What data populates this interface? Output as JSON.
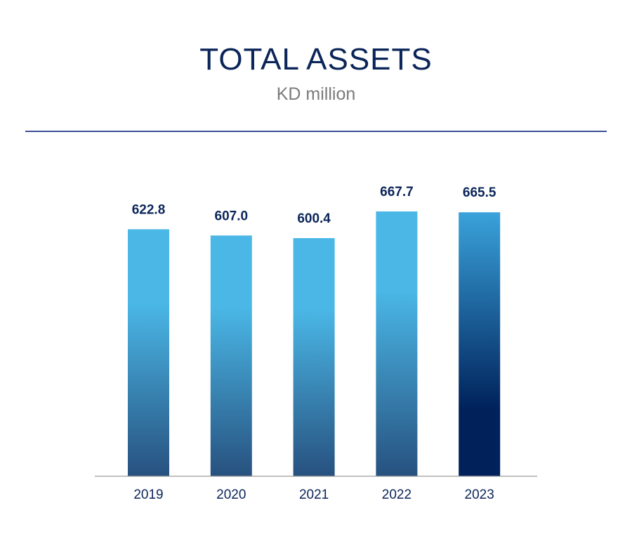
{
  "chart_data": {
    "type": "bar",
    "title": "TOTAL ASSETS",
    "subtitle": "KD million",
    "categories": [
      "2019",
      "2020",
      "2021",
      "2022",
      "2023"
    ],
    "values": [
      622.8,
      607.0,
      600.4,
      667.7,
      665.5
    ],
    "value_labels": [
      "622.8",
      "607.0",
      "600.4",
      "667.7",
      "665.5"
    ],
    "highlight_index": 4,
    "grid": false,
    "colors": {
      "bar_top": "#4ab7e6",
      "bar_bottom": "#27517f",
      "highlight_top": "#3aa2da",
      "highlight_bottom": "#00215a",
      "label": "#0b2559",
      "rule": "#3d4f94",
      "axis": "#9a9a9a"
    }
  }
}
